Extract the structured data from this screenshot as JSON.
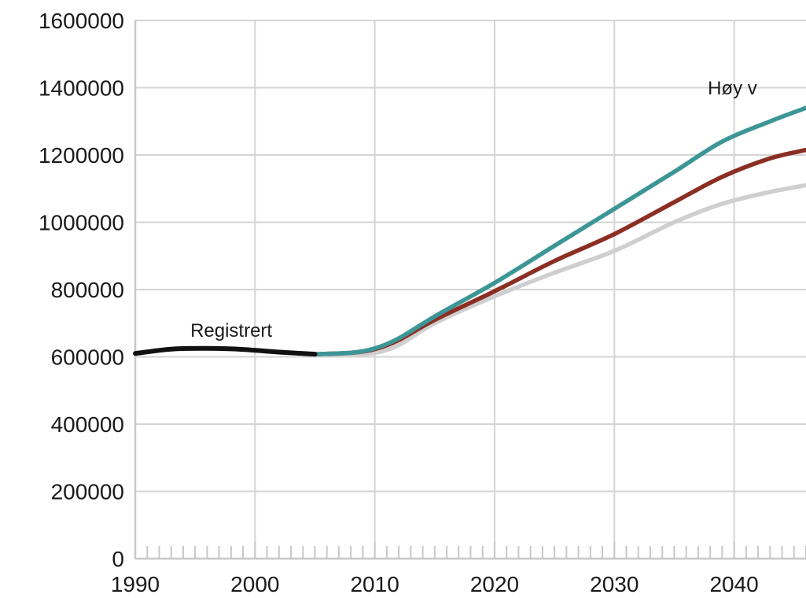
{
  "chart_data": {
    "type": "line",
    "title": "",
    "xlabel": "",
    "ylabel": "",
    "xlim": [
      1990,
      2046
    ],
    "ylim": [
      0,
      1600000
    ],
    "x_ticks": [
      "1990",
      "2000",
      "2010",
      "2020",
      "2030",
      "2040"
    ],
    "y_ticks": [
      "0",
      "200000",
      "400000",
      "600000",
      "800000",
      "1000000",
      "1200000",
      "1400000",
      "1600000"
    ],
    "grid": true,
    "x_minor_ticks": true,
    "annotations": [
      {
        "id": "registrert",
        "text": "Registrert",
        "x": 1994.6,
        "y": 660000
      },
      {
        "id": "hoy",
        "text": "Høy v",
        "x": 2037.8,
        "y": 1380000
      }
    ],
    "series": [
      {
        "id": "registrert",
        "name": "Registrert",
        "color": "#111111",
        "x": [
          1990,
          1993,
          1996,
          1999,
          2002,
          2005
        ],
        "y": [
          610000,
          623000,
          625000,
          622000,
          614000,
          608000
        ]
      },
      {
        "id": "hoy",
        "name": "",
        "color": "#3d9696",
        "x": [
          2005,
          2008,
          2010,
          2012,
          2015,
          2020,
          2025,
          2030,
          2035,
          2039,
          2043,
          2046
        ],
        "y": [
          608000,
          612000,
          625000,
          655000,
          720000,
          820000,
          930000,
          1040000,
          1150000,
          1240000,
          1300000,
          1340000
        ]
      },
      {
        "id": "middels",
        "name": "",
        "color": "#8b2e23",
        "x": [
          2005,
          2008,
          2010,
          2012,
          2015,
          2020,
          2025,
          2030,
          2035,
          2039,
          2043,
          2046
        ],
        "y": [
          608000,
          612000,
          623000,
          650000,
          710000,
          795000,
          885000,
          965000,
          1060000,
          1135000,
          1190000,
          1215000
        ]
      },
      {
        "id": "lav",
        "name": "",
        "color": "#cfcfcf",
        "x": [
          2005,
          2008,
          2010,
          2012,
          2015,
          2020,
          2025,
          2030,
          2035,
          2039,
          2043,
          2046
        ],
        "y": [
          608000,
          608000,
          612000,
          635000,
          700000,
          780000,
          850000,
          915000,
          1000000,
          1055000,
          1090000,
          1110000
        ]
      }
    ]
  }
}
